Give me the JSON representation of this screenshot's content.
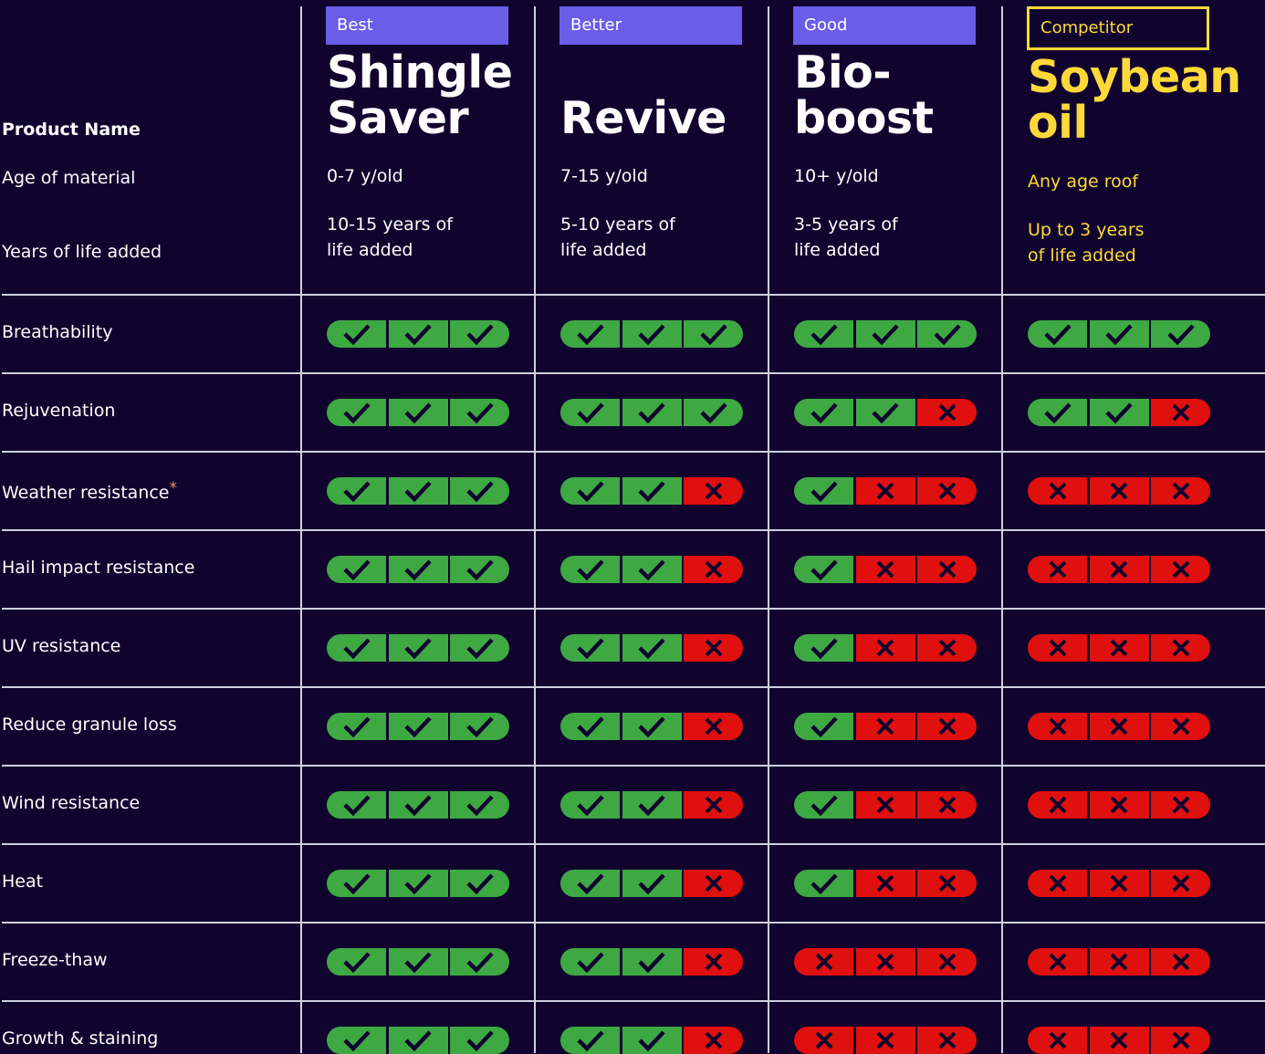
{
  "labels": {
    "product_name": "Product Name",
    "age": "Age of material",
    "years": "Years of life added"
  },
  "max_rating": 3,
  "products": [
    {
      "badge": "Best",
      "name": [
        "Shingle",
        "Saver"
      ],
      "age": "0-7 y/old",
      "years": [
        "10-15 years of",
        "life added"
      ]
    },
    {
      "badge": "Better",
      "name": [
        "Revive"
      ],
      "age": "7-15 y/old",
      "years": [
        "5-10 years of",
        "life added"
      ]
    },
    {
      "badge": "Good",
      "name": [
        "Bio-",
        "boost"
      ],
      "age": "10+ y/old",
      "years": [
        "3-5 years of",
        "life added"
      ]
    },
    {
      "badge": "Competitor",
      "competitor": true,
      "name": [
        "Soybean",
        "oil"
      ],
      "age": "Any age roof",
      "years": [
        "Up to 3 years",
        "of life added"
      ]
    }
  ],
  "rows": [
    {
      "label": "Breathability",
      "ratings": [
        3,
        3,
        3,
        3
      ]
    },
    {
      "label": "Rejuvenation",
      "ratings": [
        3,
        3,
        2,
        2
      ]
    },
    {
      "label": "Weather resistance",
      "note": "*",
      "ratings": [
        3,
        2,
        1,
        0
      ]
    },
    {
      "label": "Hail impact resistance",
      "ratings": [
        3,
        2,
        1,
        0
      ]
    },
    {
      "label": "UV resistance",
      "ratings": [
        3,
        2,
        1,
        0
      ]
    },
    {
      "label": "Reduce granule loss",
      "ratings": [
        3,
        2,
        1,
        0
      ]
    },
    {
      "label": "Wind resistance",
      "ratings": [
        3,
        2,
        1,
        0
      ]
    },
    {
      "label": "Heat",
      "ratings": [
        3,
        2,
        1,
        0
      ]
    },
    {
      "label": "Freeze-thaw",
      "ratings": [
        3,
        2,
        0,
        0
      ]
    },
    {
      "label": "Growth & staining",
      "ratings": [
        3,
        2,
        0,
        0
      ]
    }
  ]
}
